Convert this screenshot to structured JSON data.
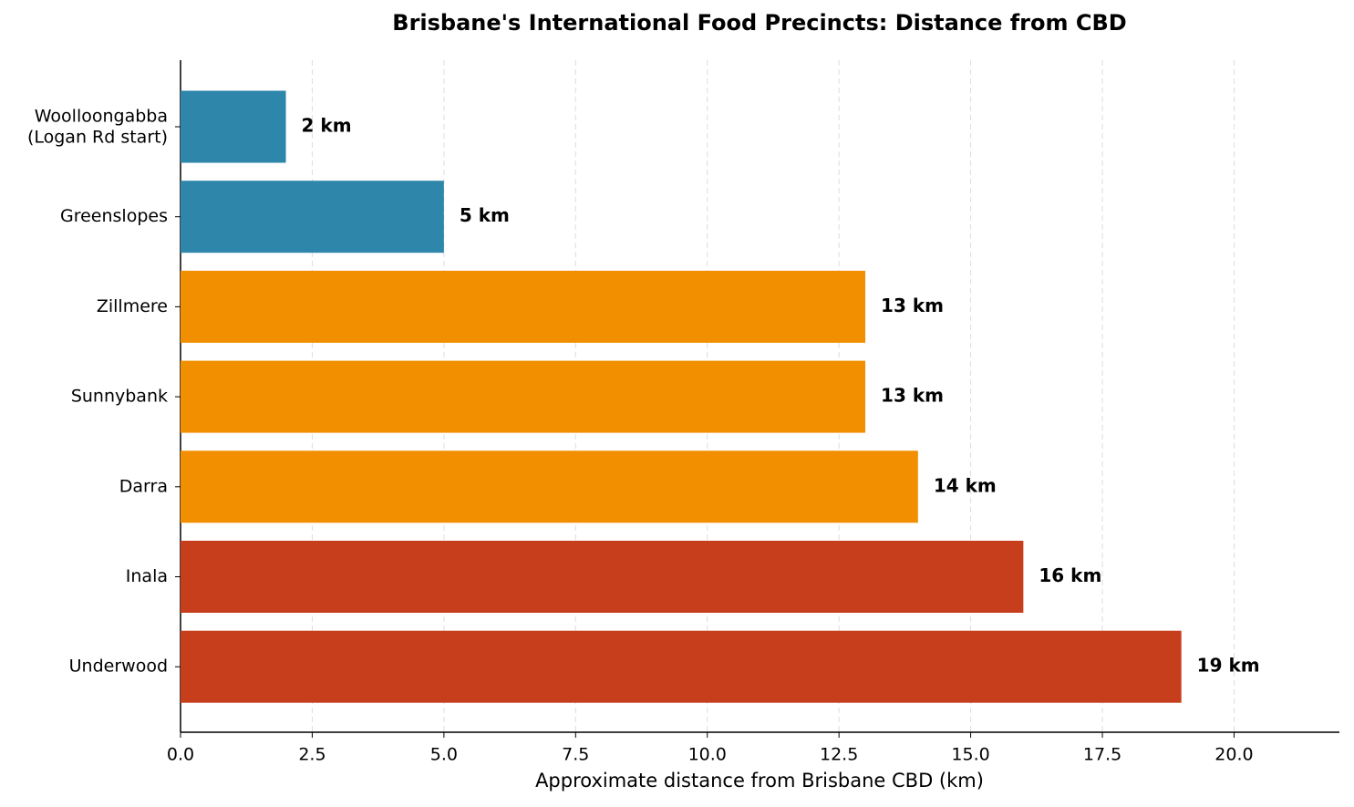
{
  "chart_data": {
    "type": "bar",
    "orientation": "horizontal",
    "title": "Brisbane's International Food Precincts: Distance from CBD",
    "xlabel": "Approximate distance from Brisbane CBD (km)",
    "categories": [
      "Woolloongabba\n(Logan Rd start)",
      "Greenslopes",
      "Zillmere",
      "Sunnybank",
      "Darra",
      "Inala",
      "Underwood"
    ],
    "values": [
      2,
      5,
      13,
      13,
      14,
      16,
      19
    ],
    "value_labels": [
      "2 km",
      "5 km",
      "13 km",
      "13 km",
      "14 km",
      "16 km",
      "19 km"
    ],
    "colors": [
      "#2e86ab",
      "#2e86ab",
      "#f18f01",
      "#f18f01",
      "#f18f01",
      "#c73e1d",
      "#c73e1d"
    ],
    "xlim": [
      0,
      22
    ],
    "xticks": [
      {
        "value": 0,
        "label": "0.0"
      },
      2.5,
      {
        "value": 5,
        "label": "5.0"
      },
      7.5,
      {
        "value": 10,
        "label": "10.0"
      },
      12.5,
      {
        "value": 15,
        "label": "15.0"
      },
      17.5,
      {
        "value": 20,
        "label": "20.0"
      }
    ],
    "grid": true
  }
}
